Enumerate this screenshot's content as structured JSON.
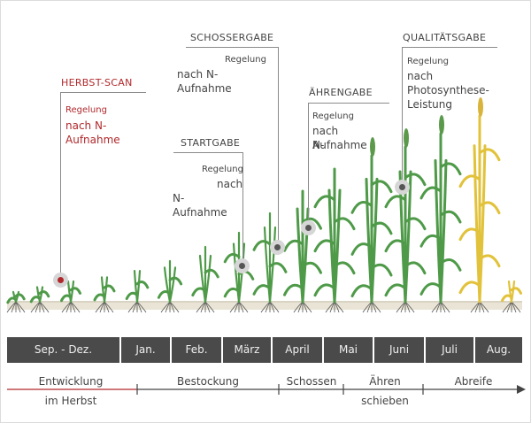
{
  "callouts": {
    "herbst": {
      "title": "HERBST-SCAN",
      "line1": "Regelung",
      "line2": "nach N-Aufnahme"
    },
    "start": {
      "title": "STARTGABE",
      "line1": "Regelung",
      "line2": "nach",
      "line3": "N-Aufnahme"
    },
    "schosser": {
      "title": "SCHOSSERGABE",
      "line1": "Regelung",
      "line2": "nach N-Aufnahme"
    },
    "aehren": {
      "title": "ÄHRENGABE",
      "line1": "Regelung",
      "line2": "nach N-",
      "line3": "Aufnahme"
    },
    "qualitaet": {
      "title": "QUALITÄTSGABE",
      "line1": "Regelung",
      "line2": "nach",
      "line3": "Photosynthese-",
      "line4": "Leistung"
    }
  },
  "months": [
    "Sep. - Dez.",
    "Jan.",
    "Feb.",
    "März",
    "April",
    "Mai",
    "Juni",
    "Juli",
    "Aug."
  ],
  "phases": {
    "herbst_line1": "Entwicklung",
    "herbst_line2": "im Herbst",
    "bestockung": "Bestockung",
    "schossen": "Schossen",
    "aehren_line1": "Ähren",
    "aehren_line2": "schieben",
    "abreife": "Abreife"
  },
  "colors": {
    "accent_red": "#b0282b",
    "month_bar": "#4a4a4a",
    "plant_green": "#4e9a48",
    "plant_yellow": "#e2c23a",
    "soil": "#e9e4d6"
  }
}
